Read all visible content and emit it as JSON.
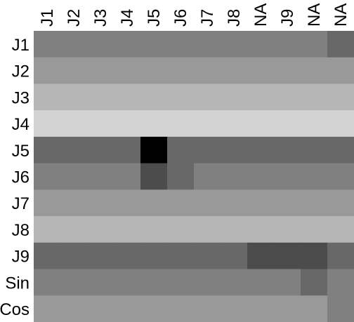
{
  "chart_data": {
    "type": "heatmap",
    "x_labels": [
      "J1",
      "J2",
      "J3",
      "J4",
      "J5",
      "J6",
      "J7",
      "J8",
      "NA",
      "J9",
      "NA",
      "NA"
    ],
    "y_labels": [
      "J1",
      "J2",
      "J3",
      "J4",
      "J5",
      "J6",
      "J7",
      "J8",
      "J9",
      "Sin",
      "Cos"
    ],
    "values": [
      [
        128,
        128,
        128,
        128,
        128,
        128,
        128,
        128,
        128,
        128,
        128,
        104
      ],
      [
        153,
        153,
        153,
        153,
        153,
        153,
        153,
        153,
        153,
        153,
        153,
        153
      ],
      [
        182,
        182,
        182,
        182,
        182,
        182,
        182,
        182,
        182,
        182,
        182,
        182
      ],
      [
        211,
        211,
        211,
        211,
        211,
        211,
        211,
        211,
        211,
        211,
        211,
        211
      ],
      [
        104,
        104,
        104,
        104,
        0,
        104,
        104,
        104,
        104,
        104,
        104,
        104
      ],
      [
        128,
        128,
        128,
        128,
        76,
        104,
        128,
        128,
        128,
        128,
        128,
        128
      ],
      [
        153,
        153,
        153,
        153,
        153,
        153,
        153,
        153,
        153,
        153,
        153,
        153
      ],
      [
        182,
        182,
        182,
        182,
        182,
        182,
        182,
        182,
        182,
        182,
        182,
        182
      ],
      [
        104,
        104,
        104,
        104,
        104,
        104,
        104,
        104,
        76,
        76,
        76,
        104
      ],
      [
        128,
        128,
        128,
        128,
        128,
        128,
        128,
        128,
        128,
        128,
        104,
        128
      ],
      [
        153,
        153,
        153,
        153,
        153,
        153,
        153,
        153,
        153,
        153,
        153,
        128
      ]
    ],
    "colormap": "grayscale",
    "title": "",
    "xlabel": "",
    "ylabel": ""
  }
}
